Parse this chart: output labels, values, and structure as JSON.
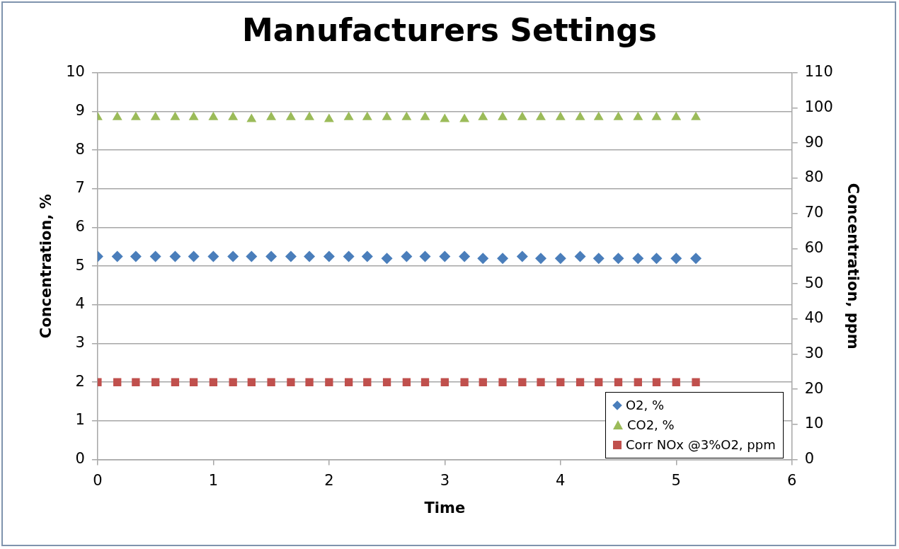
{
  "chart_data": {
    "type": "scatter",
    "title": "Manufacturers Settings",
    "xlabel": "Time",
    "ylabel": "Concentration, %",
    "y2label": "Concentration, ppm",
    "x": [
      0,
      0.17,
      0.33,
      0.5,
      0.67,
      0.83,
      1,
      1.17,
      1.33,
      1.5,
      1.67,
      1.83,
      2,
      2.17,
      2.33,
      2.5,
      2.67,
      2.83,
      3,
      3.17,
      3.33,
      3.5,
      3.67,
      3.83,
      4,
      4.17,
      4.33,
      4.5,
      4.67,
      4.83,
      5,
      5.17
    ],
    "series": [
      {
        "name": "O2, %",
        "color": "#4a7ebb",
        "marker": "diamond",
        "values": [
          5.25,
          5.25,
          5.25,
          5.25,
          5.25,
          5.25,
          5.25,
          5.25,
          5.25,
          5.25,
          5.25,
          5.25,
          5.25,
          5.25,
          5.25,
          5.2,
          5.25,
          5.25,
          5.25,
          5.25,
          5.2,
          5.2,
          5.25,
          5.2,
          5.2,
          5.25,
          5.2,
          5.2,
          5.2,
          5.2,
          5.2,
          5.2
        ]
      },
      {
        "name": "CO2, %",
        "color": "#9bbb59",
        "marker": "triangle",
        "values": [
          8.85,
          8.85,
          8.85,
          8.85,
          8.85,
          8.85,
          8.85,
          8.85,
          8.8,
          8.85,
          8.85,
          8.85,
          8.8,
          8.85,
          8.85,
          8.85,
          8.85,
          8.85,
          8.8,
          8.8,
          8.85,
          8.85,
          8.85,
          8.85,
          8.85,
          8.85,
          8.85,
          8.85,
          8.85,
          8.85,
          8.85,
          8.85
        ]
      },
      {
        "name": "Corr NOx @3%O2, ppm",
        "color": "#c0504d",
        "marker": "square",
        "axis": "y2",
        "values": [
          22,
          22,
          22,
          22,
          22,
          22,
          22,
          22,
          22,
          22,
          22,
          22,
          22,
          22,
          22,
          22,
          22,
          22,
          22,
          22,
          22,
          22,
          22,
          22,
          22,
          22,
          22,
          22,
          22,
          22,
          22,
          22
        ]
      }
    ],
    "xlim": [
      0,
      6
    ],
    "xticks": [
      0,
      1,
      2,
      3,
      4,
      5,
      6
    ],
    "ylim": [
      0,
      10
    ],
    "yticks": [
      0,
      1,
      2,
      3,
      4,
      5,
      6,
      7,
      8,
      9,
      10
    ],
    "y2lim": [
      0,
      110
    ],
    "y2ticks": [
      0,
      10,
      20,
      30,
      40,
      50,
      60,
      70,
      80,
      90,
      100,
      110
    ],
    "grid": "y",
    "legend": "bottom right"
  }
}
